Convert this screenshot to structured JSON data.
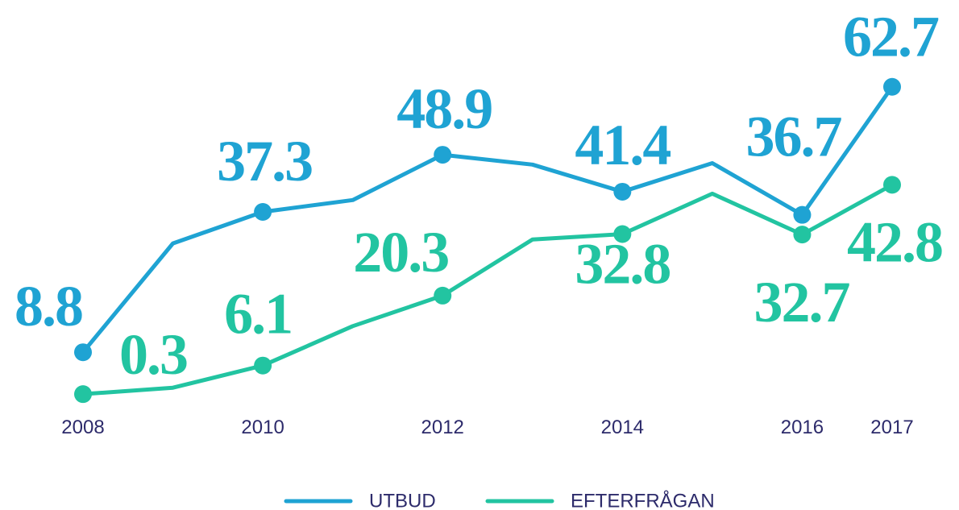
{
  "chart_data": {
    "type": "line",
    "x": [
      2008,
      2009,
      2010,
      2011,
      2012,
      2013,
      2014,
      2015,
      2016,
      2017
    ],
    "xlim": [
      2008,
      2017
    ],
    "xticks": [
      2008,
      2010,
      2012,
      2014,
      2016,
      2017
    ],
    "ylim": [
      0,
      80
    ],
    "legend": "bottom",
    "series": [
      {
        "name": "UTBUD",
        "color": "#1fa3d3",
        "values": [
          8.8,
          30.9,
          37.3,
          39.7,
          48.9,
          46.9,
          41.4,
          47.2,
          36.7,
          62.7
        ],
        "value_labels": [
          "8.8",
          null,
          "37.3",
          null,
          "48.9",
          null,
          "41.4",
          null,
          "36.7",
          "62.7"
        ]
      },
      {
        "name": "EFTERFRÅGAN",
        "color": "#22c4a1",
        "values": [
          0.3,
          1.6,
          6.1,
          14.1,
          20.3,
          31.7,
          32.8,
          41.0,
          32.7,
          42.8
        ],
        "value_labels": [
          "0.3",
          null,
          "6.1",
          null,
          "20.3",
          null,
          "32.8",
          null,
          "32.7",
          "42.8"
        ]
      }
    ]
  }
}
